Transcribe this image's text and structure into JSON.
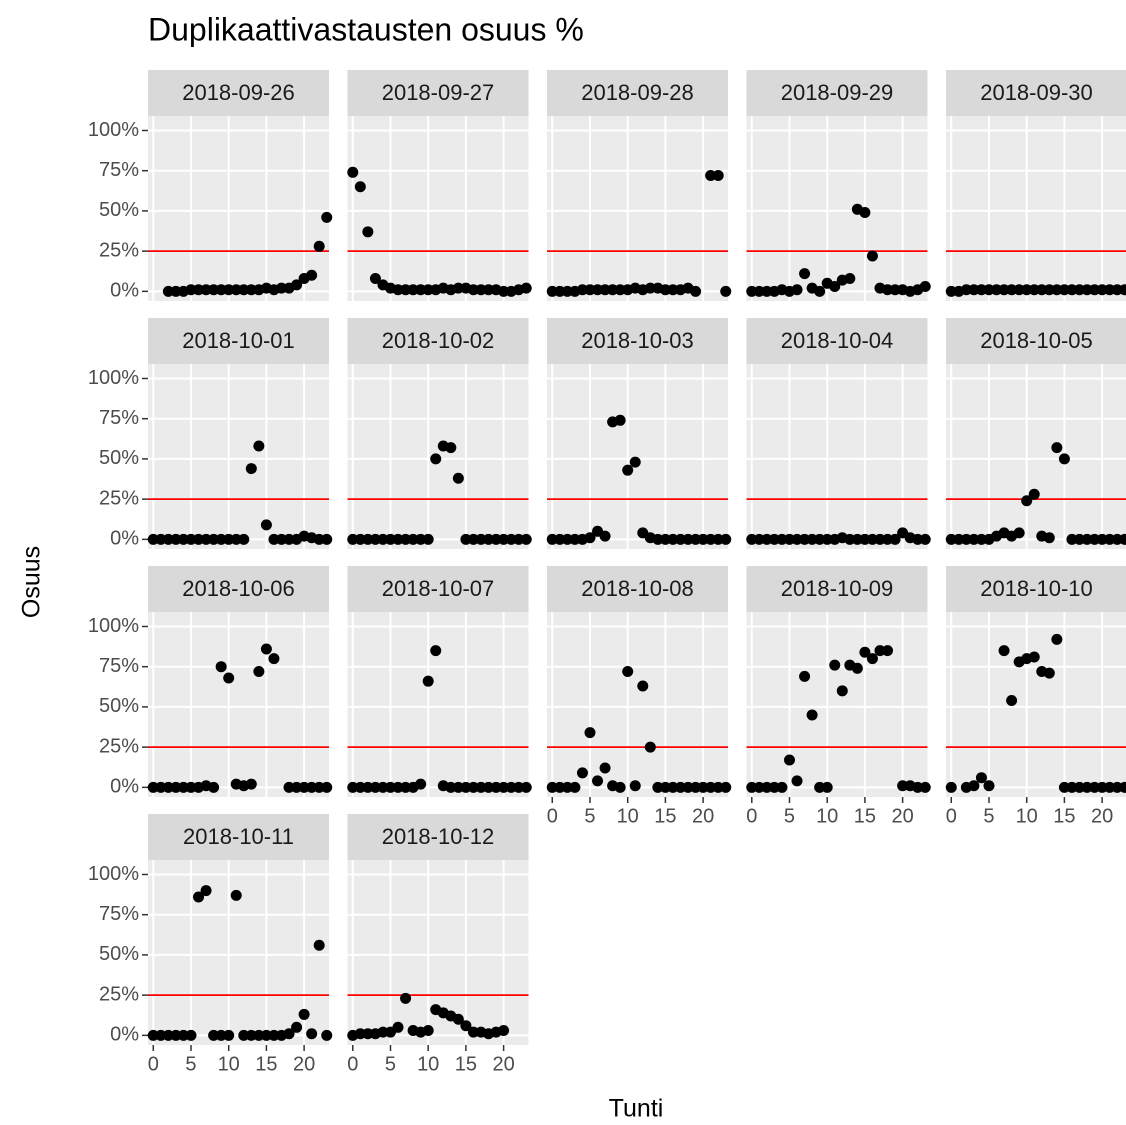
{
  "chart_data": {
    "type": "scatter",
    "title": "Duplikaattivastausten osuus %",
    "xlabel": "Tunti",
    "ylabel": "Osuus",
    "x": [
      0,
      1,
      2,
      3,
      4,
      5,
      6,
      7,
      8,
      9,
      10,
      11,
      12,
      13,
      14,
      15,
      16,
      17,
      18,
      19,
      20,
      21,
      22,
      23
    ],
    "xlim": [
      -0.7,
      23.3
    ],
    "ylim": [
      -6,
      109
    ],
    "xticks": [
      0,
      5,
      10,
      15,
      20
    ],
    "yticks": [
      {
        "value": 0,
        "label": "0%"
      },
      {
        "value": 25,
        "label": "25%"
      },
      {
        "value": 50,
        "label": "50%"
      },
      {
        "value": 75,
        "label": "75%"
      },
      {
        "value": 100,
        "label": "100%"
      }
    ],
    "hline": {
      "value": 25,
      "color": "#ff0000"
    },
    "point_color": "#000000",
    "grid": true,
    "panels": [
      {
        "title": "2018-09-26",
        "values": [
          null,
          null,
          0,
          0,
          0,
          1,
          1,
          1,
          1,
          1,
          1,
          1,
          1,
          1,
          1,
          2,
          1,
          2,
          2,
          4,
          8,
          10,
          28,
          46
        ]
      },
      {
        "title": "2018-09-27",
        "values": [
          74,
          65,
          37,
          8,
          4,
          2,
          1,
          1,
          1,
          1,
          1,
          1,
          2,
          1,
          2,
          2,
          1,
          1,
          1,
          1,
          0,
          0,
          1,
          2
        ]
      },
      {
        "title": "2018-09-28",
        "values": [
          0,
          0,
          0,
          0,
          1,
          1,
          1,
          1,
          1,
          1,
          1,
          2,
          1,
          2,
          2,
          1,
          1,
          1,
          2,
          0,
          null,
          72,
          72,
          0
        ]
      },
      {
        "title": "2018-09-29",
        "values": [
          0,
          0,
          0,
          0,
          1,
          0,
          1,
          11,
          2,
          0,
          5,
          3,
          7,
          8,
          51,
          49,
          22,
          2,
          1,
          1,
          1,
          0,
          1,
          3
        ]
      },
      {
        "title": "2018-09-30",
        "values": [
          0,
          0,
          1,
          1,
          1,
          1,
          1,
          1,
          1,
          1,
          1,
          1,
          1,
          1,
          1,
          1,
          1,
          1,
          1,
          1,
          1,
          1,
          1,
          1
        ]
      },
      {
        "title": "2018-10-01",
        "values": [
          0,
          0,
          0,
          0,
          0,
          0,
          0,
          0,
          0,
          0,
          0,
          0,
          0,
          44,
          58,
          9,
          0,
          0,
          0,
          0,
          2,
          1,
          0,
          0
        ]
      },
      {
        "title": "2018-10-02",
        "values": [
          0,
          0,
          0,
          0,
          0,
          0,
          0,
          0,
          0,
          0,
          0,
          50,
          58,
          57,
          38,
          0,
          0,
          0,
          0,
          0,
          0,
          0,
          0,
          0
        ]
      },
      {
        "title": "2018-10-03",
        "values": [
          0,
          0,
          0,
          0,
          0,
          1,
          5,
          2,
          73,
          74,
          43,
          48,
          4,
          1,
          0,
          0,
          0,
          0,
          0,
          0,
          0,
          0,
          0,
          0
        ]
      },
      {
        "title": "2018-10-04",
        "values": [
          0,
          0,
          0,
          0,
          0,
          0,
          0,
          0,
          0,
          0,
          0,
          0,
          1,
          0,
          0,
          0,
          0,
          0,
          0,
          0,
          4,
          1,
          0,
          0
        ]
      },
      {
        "title": "2018-10-05",
        "values": [
          0,
          0,
          0,
          0,
          0,
          0,
          2,
          4,
          2,
          4,
          24,
          28,
          2,
          1,
          57,
          50,
          0,
          0,
          0,
          0,
          0,
          0,
          0,
          0
        ]
      },
      {
        "title": "2018-10-06",
        "values": [
          0,
          0,
          0,
          0,
          0,
          0,
          0,
          1,
          0,
          75,
          68,
          2,
          1,
          2,
          72,
          86,
          80,
          null,
          0,
          0,
          0,
          0,
          0,
          0
        ]
      },
      {
        "title": "2018-10-07",
        "values": [
          0,
          0,
          0,
          0,
          0,
          0,
          0,
          0,
          0,
          2,
          66,
          85,
          1,
          0,
          0,
          0,
          0,
          0,
          0,
          0,
          0,
          0,
          0,
          0
        ]
      },
      {
        "title": "2018-10-08",
        "values": [
          0,
          0,
          0,
          0,
          9,
          34,
          4,
          12,
          1,
          0,
          72,
          1,
          63,
          25,
          0,
          0,
          0,
          0,
          0,
          0,
          0,
          0,
          0,
          0
        ]
      },
      {
        "title": "2018-10-09",
        "values": [
          0,
          0,
          0,
          0,
          0,
          17,
          4,
          69,
          45,
          0,
          0,
          76,
          60,
          76,
          74,
          84,
          80,
          85,
          85,
          null,
          1,
          1,
          0,
          0
        ]
      },
      {
        "title": "2018-10-10",
        "values": [
          0,
          null,
          0,
          1,
          6,
          1,
          null,
          85,
          54,
          78,
          80,
          81,
          72,
          71,
          92,
          0,
          0,
          0,
          0,
          0,
          0,
          0,
          0,
          0
        ]
      },
      {
        "title": "2018-10-11",
        "values": [
          0,
          0,
          0,
          0,
          0,
          0,
          86,
          90,
          0,
          0,
          0,
          87,
          0,
          0,
          0,
          0,
          0,
          0,
          1,
          5,
          13,
          1,
          56,
          0
        ]
      },
      {
        "title": "2018-10-12",
        "values": [
          0,
          1,
          1,
          1,
          2,
          2,
          5,
          23,
          3,
          2,
          3,
          16,
          14,
          12,
          10,
          6,
          2,
          2,
          1,
          2,
          3,
          null,
          null,
          null
        ]
      }
    ]
  }
}
